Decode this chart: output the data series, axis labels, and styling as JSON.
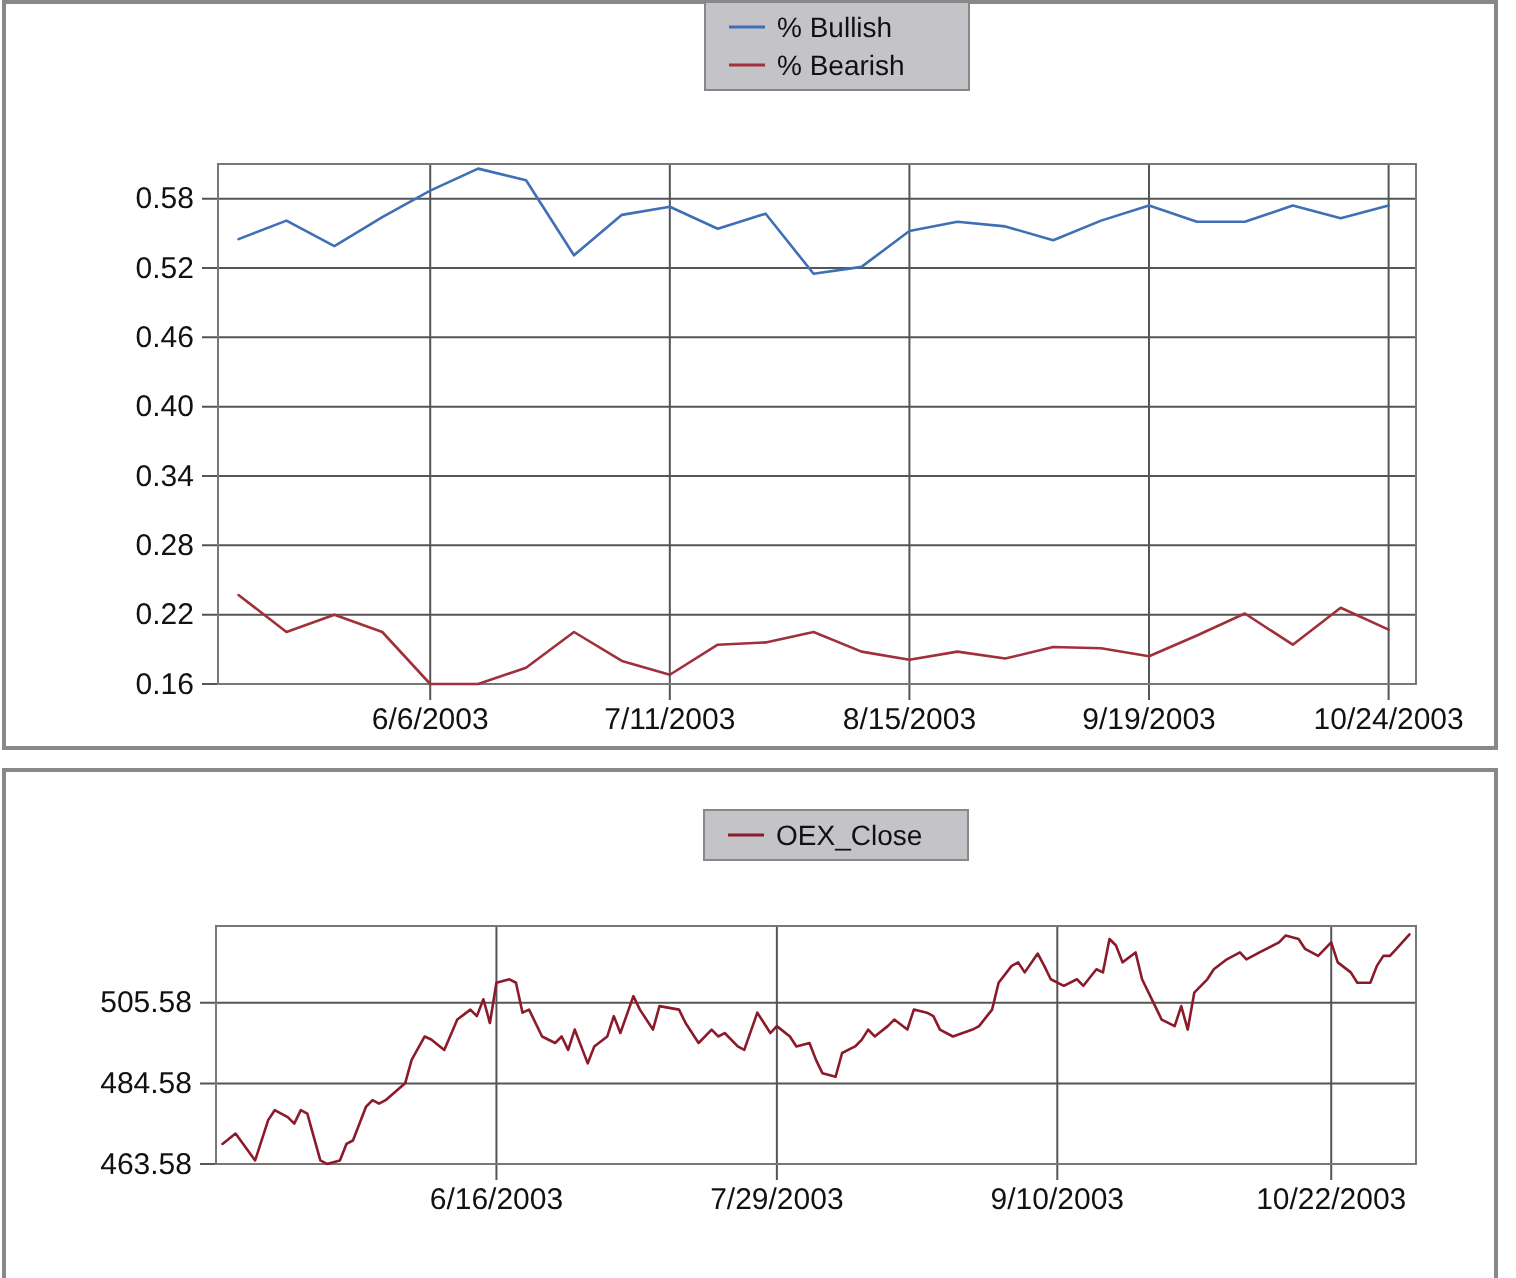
{
  "chart_data": [
    {
      "type": "line",
      "legend": "top",
      "grid": true,
      "x": [
        "2003-05-09",
        "2003-05-16",
        "2003-05-23",
        "2003-05-30",
        "2003-06-06",
        "2003-06-13",
        "2003-06-20",
        "2003-06-27",
        "2003-07-04",
        "2003-07-11",
        "2003-07-18",
        "2003-07-25",
        "2003-08-01",
        "2003-08-08",
        "2003-08-15",
        "2003-08-22",
        "2003-08-29",
        "2003-09-05",
        "2003-09-12",
        "2003-09-19",
        "2003-09-26",
        "2003-10-03",
        "2003-10-10",
        "2003-10-17",
        "2003-10-24"
      ],
      "series": [
        {
          "name": "% Bullish",
          "color": "#3f6fb5",
          "values": [
            0.545,
            0.561,
            0.539,
            0.564,
            0.587,
            0.606,
            0.596,
            0.531,
            0.566,
            0.573,
            0.554,
            0.567,
            0.515,
            0.521,
            0.552,
            0.56,
            0.556,
            0.544,
            0.561,
            0.574,
            0.56,
            0.56,
            0.574,
            0.563,
            0.574
          ]
        },
        {
          "name": "% Bearish",
          "color": "#a0303a",
          "values": [
            0.237,
            0.205,
            0.22,
            0.205,
            0.16,
            0.16,
            0.174,
            0.205,
            0.18,
            0.168,
            0.194,
            0.196,
            0.205,
            0.188,
            0.181,
            0.188,
            0.182,
            0.192,
            0.191,
            0.184,
            0.202,
            0.221,
            0.194,
            0.226,
            0.207
          ]
        }
      ],
      "xlim": [
        "2003-05-06",
        "2003-10-28"
      ],
      "xticks": [
        {
          "value": "2003-06-06",
          "label": "6/6/2003"
        },
        {
          "value": "2003-07-11",
          "label": "7/11/2003"
        },
        {
          "value": "2003-08-15",
          "label": "8/15/2003"
        },
        {
          "value": "2003-09-19",
          "label": "9/19/2003"
        },
        {
          "value": "2003-10-24",
          "label": "10/24/2003"
        }
      ],
      "ylim": [
        0.16,
        0.61
      ],
      "yticks": [
        0.16,
        0.22,
        0.28,
        0.34,
        {
          "value": 0.4,
          "label": "0.40"
        },
        0.46,
        0.52,
        0.58
      ]
    },
    {
      "type": "line",
      "legend": "top",
      "grid": true,
      "x": [
        "2003-05-05",
        "2003-05-07",
        "2003-05-10",
        "2003-05-12",
        "2003-05-13",
        "2003-05-15",
        "2003-05-16",
        "2003-05-17",
        "2003-05-18",
        "2003-05-20",
        "2003-05-21",
        "2003-05-23",
        "2003-05-24",
        "2003-05-25",
        "2003-05-27",
        "2003-05-28",
        "2003-05-29",
        "2003-05-30",
        "2003-06-02",
        "2003-06-03",
        "2003-06-05",
        "2003-06-06",
        "2003-06-08",
        "2003-06-10",
        "2003-06-12",
        "2003-06-13",
        "2003-06-14",
        "2003-06-15",
        "2003-06-16",
        "2003-06-18",
        "2003-06-19",
        "2003-06-20",
        "2003-06-21",
        "2003-06-23",
        "2003-06-25",
        "2003-06-26",
        "2003-06-27",
        "2003-06-28",
        "2003-06-30",
        "2003-07-01",
        "2003-07-03",
        "2003-07-04",
        "2003-07-05",
        "2003-07-07",
        "2003-07-08",
        "2003-07-10",
        "2003-07-11",
        "2003-07-14",
        "2003-07-15",
        "2003-07-17",
        "2003-07-19",
        "2003-07-20",
        "2003-07-21",
        "2003-07-23",
        "2003-07-24",
        "2003-07-26",
        "2003-07-28",
        "2003-07-29",
        "2003-07-31",
        "2003-08-01",
        "2003-08-03",
        "2003-08-04",
        "2003-08-05",
        "2003-08-07",
        "2003-08-08",
        "2003-08-10",
        "2003-08-11",
        "2003-08-12",
        "2003-08-13",
        "2003-08-15",
        "2003-08-16",
        "2003-08-18",
        "2003-08-19",
        "2003-08-21",
        "2003-08-22",
        "2003-08-23",
        "2003-08-25",
        "2003-08-28",
        "2003-08-29",
        "2003-08-31",
        "2003-09-01",
        "2003-09-03",
        "2003-09-04",
        "2003-09-05",
        "2003-09-07",
        "2003-09-08",
        "2003-09-09",
        "2003-09-11",
        "2003-09-13",
        "2003-09-14",
        "2003-09-16",
        "2003-09-17",
        "2003-09-18",
        "2003-09-19",
        "2003-09-20",
        "2003-09-22",
        "2003-09-23",
        "2003-09-25",
        "2003-09-26",
        "2003-09-28",
        "2003-09-29",
        "2003-09-30",
        "2003-10-01",
        "2003-10-03",
        "2003-10-04",
        "2003-10-06",
        "2003-10-08",
        "2003-10-09",
        "2003-10-11",
        "2003-10-14",
        "2003-10-15",
        "2003-10-17",
        "2003-10-18",
        "2003-10-20",
        "2003-10-22",
        "2003-10-23",
        "2003-10-25",
        "2003-10-26",
        "2003-10-28",
        "2003-10-29",
        "2003-10-30",
        "2003-10-31",
        "2003-11-01",
        "2003-11-03"
      ],
      "series": [
        {
          "name": "OEX_Close",
          "color": "#8b1a2a",
          "values": [
            468.8,
            471.5,
            464.5,
            475.0,
            477.6,
            475.8,
            474.1,
            477.6,
            476.7,
            464.5,
            463.6,
            464.5,
            468.8,
            469.7,
            478.5,
            480.2,
            479.3,
            480.2,
            484.6,
            490.7,
            496.8,
            496.0,
            493.3,
            501.2,
            503.8,
            502.1,
            506.5,
            500.3,
            510.8,
            511.7,
            510.8,
            503.0,
            503.8,
            496.8,
            495.1,
            496.8,
            493.3,
            498.6,
            489.8,
            494.2,
            496.8,
            502.1,
            497.7,
            507.3,
            503.8,
            498.6,
            504.7,
            503.8,
            500.3,
            495.1,
            498.6,
            496.8,
            497.7,
            494.2,
            493.3,
            503.0,
            497.7,
            499.5,
            496.8,
            494.2,
            495.1,
            490.7,
            487.2,
            486.3,
            492.5,
            494.2,
            495.9,
            498.6,
            496.8,
            499.5,
            501.2,
            498.6,
            503.8,
            503.0,
            502.1,
            498.6,
            496.8,
            498.6,
            499.5,
            503.8,
            510.8,
            515.2,
            516.1,
            513.5,
            518.4,
            515.2,
            511.7,
            510.0,
            511.7,
            510.0,
            514.3,
            513.5,
            522.2,
            520.5,
            516.1,
            518.7,
            511.7,
            504.7,
            501.2,
            499.5,
            504.7,
            498.6,
            508.2,
            511.7,
            514.3,
            516.9,
            518.7,
            516.9,
            518.7,
            521.3,
            523.1,
            522.2,
            519.6,
            517.8,
            521.3,
            516.1,
            513.5,
            510.8,
            510.8,
            515.2,
            517.8,
            517.8,
            519.6,
            523.4
          ]
        }
      ],
      "xlim": [
        "2003-05-04",
        "2003-11-04"
      ],
      "xticks": [
        {
          "value": "2003-06-16",
          "label": "6/16/2003"
        },
        {
          "value": "2003-07-29",
          "label": "7/29/2003"
        },
        {
          "value": "2003-09-10",
          "label": "9/10/2003"
        },
        {
          "value": "2003-10-22",
          "label": "10/22/2003"
        }
      ],
      "ylim": [
        463.58,
        525.58
      ],
      "yticks": [
        463.58,
        484.58,
        505.58
      ]
    }
  ]
}
